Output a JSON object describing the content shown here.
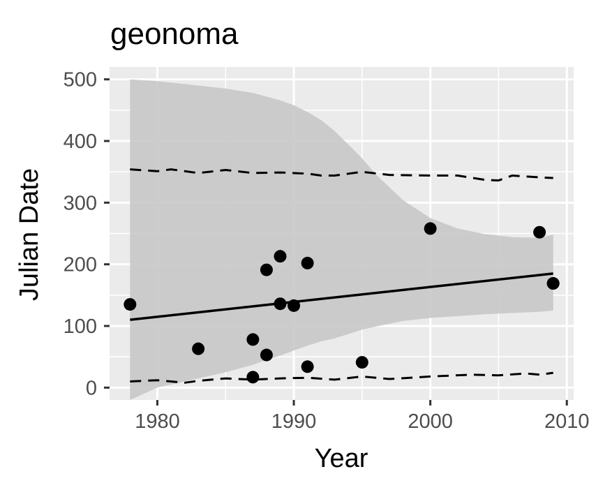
{
  "chart_data": {
    "type": "scatter",
    "title": "geonoma",
    "xlabel": "Year",
    "ylabel": "Julian Date",
    "xlim": [
      1976.5,
      2010.5
    ],
    "ylim": [
      -20,
      520
    ],
    "x_ticks": [
      1980,
      1990,
      2000,
      2010
    ],
    "x_tick_labels": [
      "1980",
      "1990",
      "2000",
      "2010"
    ],
    "y_ticks": [
      0,
      100,
      200,
      300,
      400,
      500
    ],
    "y_tick_labels": [
      "0",
      "100",
      "200",
      "300",
      "400",
      "500"
    ],
    "grid": true,
    "legend": "none",
    "colors": {
      "panel": "#ebebeb",
      "grid": "#ffffff",
      "ribbon": "#c8c8c8",
      "points": "#000000",
      "lines": "#000000"
    },
    "points": {
      "x": [
        1978,
        1983,
        1987,
        1987,
        1988,
        1988,
        1989,
        1989,
        1990,
        1991,
        1991,
        1995,
        2000,
        2008,
        2009,
        2009
      ],
      "y": [
        135,
        63,
        78,
        17,
        53,
        191,
        213,
        136,
        133,
        202,
        34,
        41,
        258,
        252,
        169,
        169
      ]
    },
    "trend_line": {
      "x": [
        1978,
        2009
      ],
      "y": [
        110,
        185
      ]
    },
    "confidence_band": {
      "x": [
        1978,
        1980,
        1983,
        1985,
        1987,
        1988,
        1989,
        1990,
        1991,
        1992,
        1993,
        1994,
        1995,
        1996,
        1998,
        2000,
        2002,
        2004,
        2006,
        2008,
        2009
      ],
      "upper": [
        500,
        497,
        490,
        485,
        478,
        472,
        466,
        458,
        447,
        434,
        416,
        394,
        372,
        346,
        304,
        275,
        258,
        249,
        244,
        243,
        248
      ],
      "lower": [
        -20,
        0,
        15,
        25,
        37,
        45,
        52,
        60,
        68,
        75,
        80,
        87,
        94,
        99,
        108,
        113,
        116,
        119,
        121,
        123,
        125
      ]
    },
    "upper_dashed": {
      "x": [
        1978,
        1980,
        1981,
        1983,
        1985,
        1987,
        1989,
        1991,
        1992,
        1993,
        1995,
        1997,
        2000,
        2002,
        2004,
        2005,
        2006,
        2008,
        2009
      ],
      "y": [
        354,
        351,
        354,
        348,
        353,
        348,
        349,
        347,
        344,
        344,
        350,
        345,
        344,
        344,
        337,
        336,
        344,
        341,
        340
      ]
    },
    "lower_dashed": {
      "x": [
        1978,
        1980,
        1982,
        1983,
        1985,
        1987,
        1989,
        1991,
        1993,
        1995,
        1997,
        2000,
        2003,
        2005,
        2007,
        2008,
        2009
      ],
      "y": [
        10,
        12,
        8,
        11,
        15,
        13,
        15,
        16,
        13,
        18,
        14,
        18,
        21,
        20,
        23,
        21,
        24
      ]
    }
  }
}
